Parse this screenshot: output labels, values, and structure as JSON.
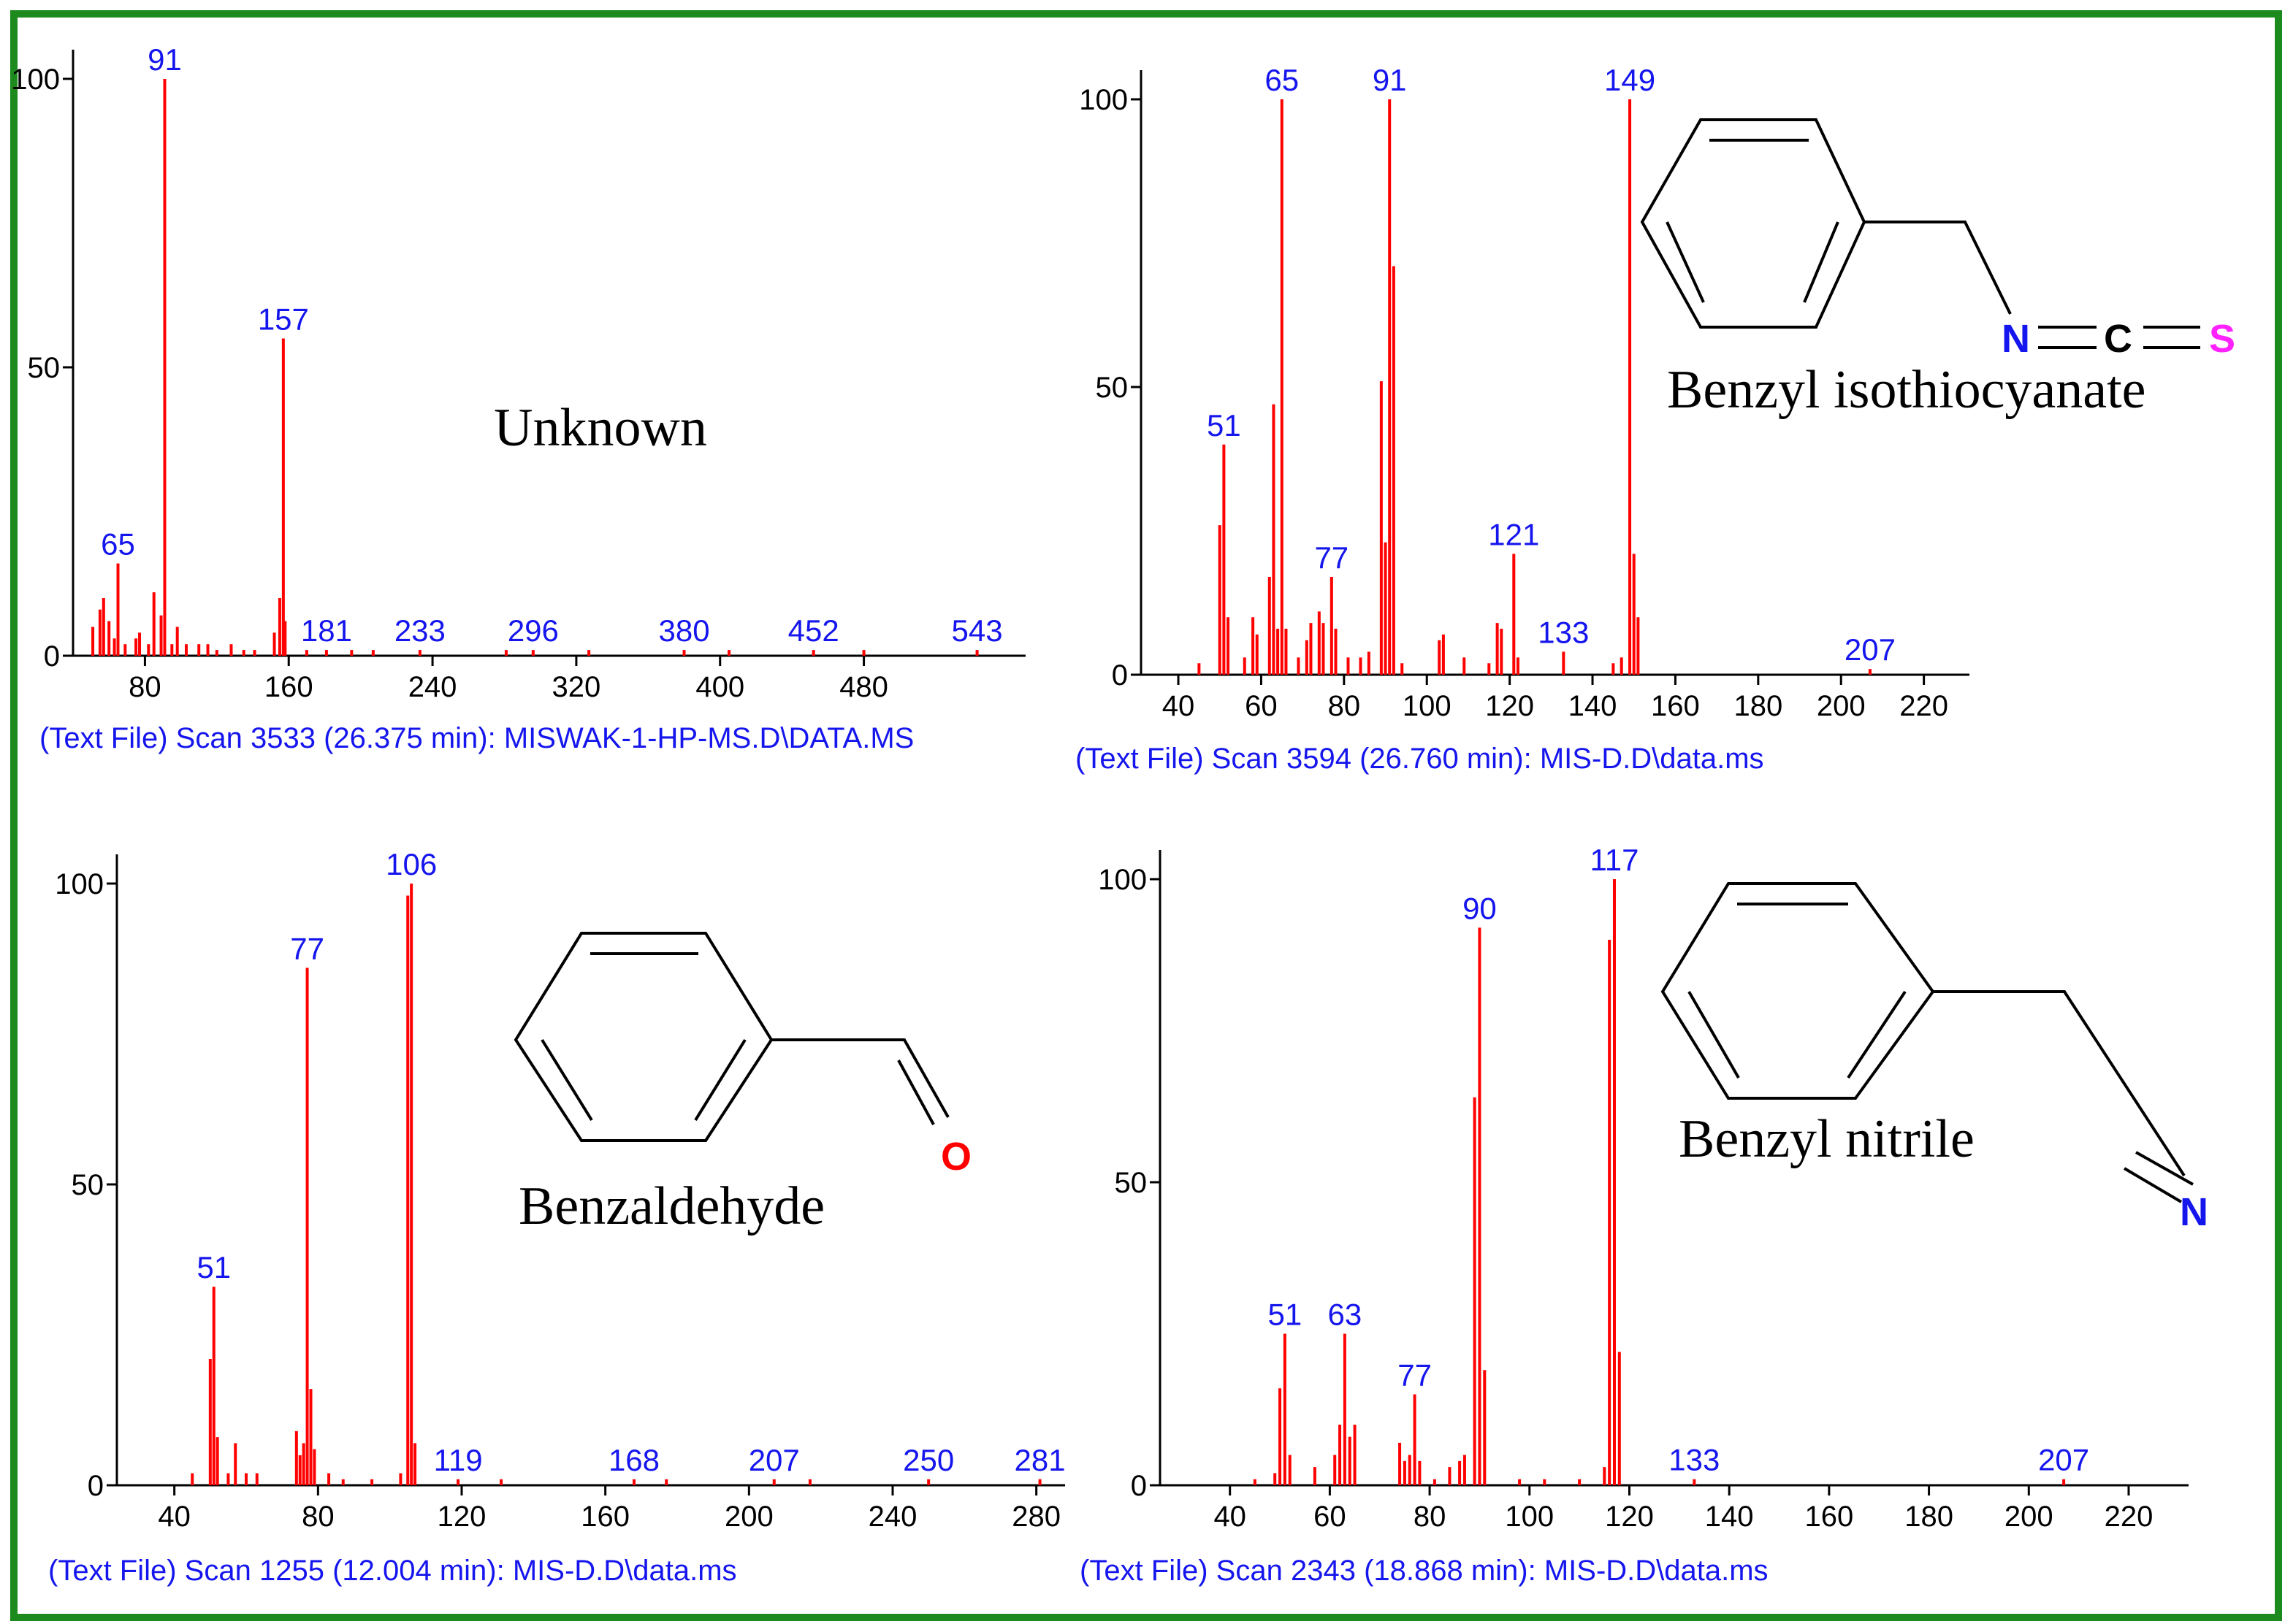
{
  "colors": {
    "frame": "#1c8a1c",
    "peaks": "#ff0000",
    "labels": "#1515ee"
  },
  "chart_data": [
    {
      "type": "bar",
      "compound_name": "Unknown",
      "caption": "(Text File) Scan 3533 (26.375 min): MISWAK-1-HP-MS.D\\DATA.MS",
      "xlim": [
        40,
        570
      ],
      "ylim": [
        0,
        100
      ],
      "x_ticks": [
        80,
        160,
        240,
        320,
        400,
        480
      ],
      "y_ticks": [
        0,
        50,
        100
      ],
      "peaks": [
        {
          "x": 51,
          "y": 5
        },
        {
          "x": 55,
          "y": 8
        },
        {
          "x": 57,
          "y": 10
        },
        {
          "x": 60,
          "y": 6
        },
        {
          "x": 63,
          "y": 3
        },
        {
          "x": 65,
          "y": 16
        },
        {
          "x": 69,
          "y": 2
        },
        {
          "x": 75,
          "y": 3
        },
        {
          "x": 77,
          "y": 4
        },
        {
          "x": 82,
          "y": 2
        },
        {
          "x": 85,
          "y": 11
        },
        {
          "x": 89,
          "y": 7
        },
        {
          "x": 91,
          "y": 100
        },
        {
          "x": 95,
          "y": 2
        },
        {
          "x": 98,
          "y": 5
        },
        {
          "x": 103,
          "y": 2
        },
        {
          "x": 110,
          "y": 2
        },
        {
          "x": 115,
          "y": 2
        },
        {
          "x": 120,
          "y": 1
        },
        {
          "x": 128,
          "y": 2
        },
        {
          "x": 135,
          "y": 1
        },
        {
          "x": 141,
          "y": 1
        },
        {
          "x": 152,
          "y": 4
        },
        {
          "x": 155,
          "y": 10
        },
        {
          "x": 157,
          "y": 55
        },
        {
          "x": 158,
          "y": 6
        },
        {
          "x": 170,
          "y": 1
        },
        {
          "x": 181,
          "y": 1
        },
        {
          "x": 195,
          "y": 1
        },
        {
          "x": 207,
          "y": 1
        },
        {
          "x": 233,
          "y": 1
        },
        {
          "x": 281,
          "y": 1
        },
        {
          "x": 296,
          "y": 1
        },
        {
          "x": 327,
          "y": 1
        },
        {
          "x": 380,
          "y": 1
        },
        {
          "x": 405,
          "y": 1
        },
        {
          "x": 452,
          "y": 1
        },
        {
          "x": 480,
          "y": 1
        },
        {
          "x": 543,
          "y": 1
        }
      ],
      "labels": [
        {
          "x": 65,
          "y": 16,
          "text": "65"
        },
        {
          "x": 91,
          "y": 100,
          "text": "91"
        },
        {
          "x": 157,
          "y": 55,
          "text": "157"
        },
        {
          "x": 181,
          "y": 1,
          "text": "181"
        },
        {
          "x": 233,
          "y": 1,
          "text": "233"
        },
        {
          "x": 296,
          "y": 1,
          "text": "296"
        },
        {
          "x": 380,
          "y": 1,
          "text": "380"
        },
        {
          "x": 452,
          "y": 1,
          "text": "452"
        },
        {
          "x": 543,
          "y": 1,
          "text": "543"
        }
      ]
    },
    {
      "type": "bar",
      "compound_name": "Benzyl isothiocyanate",
      "caption": "(Text File) Scan 3594 (26.760 min): MIS-D.D\\data.ms",
      "xlim": [
        31,
        231
      ],
      "ylim": [
        0,
        100
      ],
      "x_ticks": [
        40,
        60,
        80,
        100,
        120,
        140,
        160,
        180,
        200,
        220
      ],
      "y_ticks": [
        0,
        50,
        100
      ],
      "peaks": [
        {
          "x": 45,
          "y": 2
        },
        {
          "x": 50,
          "y": 26
        },
        {
          "x": 51,
          "y": 40
        },
        {
          "x": 52,
          "y": 10
        },
        {
          "x": 56,
          "y": 3
        },
        {
          "x": 58,
          "y": 10
        },
        {
          "x": 59,
          "y": 7
        },
        {
          "x": 62,
          "y": 17
        },
        {
          "x": 63,
          "y": 47
        },
        {
          "x": 64,
          "y": 8
        },
        {
          "x": 65,
          "y": 100
        },
        {
          "x": 66,
          "y": 8
        },
        {
          "x": 69,
          "y": 3
        },
        {
          "x": 71,
          "y": 6
        },
        {
          "x": 72,
          "y": 9
        },
        {
          "x": 74,
          "y": 11
        },
        {
          "x": 75,
          "y": 9
        },
        {
          "x": 77,
          "y": 17
        },
        {
          "x": 78,
          "y": 8
        },
        {
          "x": 81,
          "y": 3
        },
        {
          "x": 84,
          "y": 3
        },
        {
          "x": 86,
          "y": 4
        },
        {
          "x": 89,
          "y": 51
        },
        {
          "x": 90,
          "y": 23
        },
        {
          "x": 91,
          "y": 100
        },
        {
          "x": 92,
          "y": 71
        },
        {
          "x": 94,
          "y": 2
        },
        {
          "x": 103,
          "y": 6
        },
        {
          "x": 104,
          "y": 7
        },
        {
          "x": 109,
          "y": 3
        },
        {
          "x": 115,
          "y": 2
        },
        {
          "x": 117,
          "y": 9
        },
        {
          "x": 118,
          "y": 8
        },
        {
          "x": 121,
          "y": 21
        },
        {
          "x": 122,
          "y": 3
        },
        {
          "x": 133,
          "y": 4
        },
        {
          "x": 145,
          "y": 2
        },
        {
          "x": 147,
          "y": 3
        },
        {
          "x": 149,
          "y": 100
        },
        {
          "x": 150,
          "y": 21
        },
        {
          "x": 151,
          "y": 10
        },
        {
          "x": 207,
          "y": 1
        }
      ],
      "labels": [
        {
          "x": 51,
          "y": 40,
          "text": "51"
        },
        {
          "x": 65,
          "y": 100,
          "text": "65"
        },
        {
          "x": 77,
          "y": 17,
          "text": "77"
        },
        {
          "x": 91,
          "y": 100,
          "text": "91"
        },
        {
          "x": 121,
          "y": 21,
          "text": "121"
        },
        {
          "x": 133,
          "y": 4,
          "text": "133"
        },
        {
          "x": 149,
          "y": 100,
          "text": "149"
        },
        {
          "x": 207,
          "y": 1,
          "text": "207"
        }
      ],
      "structure": {
        "atoms": [
          "N",
          "C",
          "S"
        ]
      }
    },
    {
      "type": "bar",
      "compound_name": "Benzaldehyde",
      "caption": "(Text File) Scan 1255 (12.004 min): MIS-D.D\\data.ms",
      "xlim": [
        24,
        288
      ],
      "ylim": [
        0,
        100
      ],
      "x_ticks": [
        40,
        80,
        120,
        160,
        200,
        240,
        280
      ],
      "y_ticks": [
        0,
        50,
        100
      ],
      "peaks": [
        {
          "x": 45,
          "y": 2
        },
        {
          "x": 50,
          "y": 21
        },
        {
          "x": 51,
          "y": 33
        },
        {
          "x": 52,
          "y": 8
        },
        {
          "x": 55,
          "y": 2
        },
        {
          "x": 57,
          "y": 7
        },
        {
          "x": 60,
          "y": 2
        },
        {
          "x": 63,
          "y": 2
        },
        {
          "x": 74,
          "y": 9
        },
        {
          "x": 75,
          "y": 5
        },
        {
          "x": 76,
          "y": 7
        },
        {
          "x": 77,
          "y": 86
        },
        {
          "x": 78,
          "y": 16
        },
        {
          "x": 79,
          "y": 6
        },
        {
          "x": 83,
          "y": 2
        },
        {
          "x": 87,
          "y": 1
        },
        {
          "x": 95,
          "y": 1
        },
        {
          "x": 103,
          "y": 2
        },
        {
          "x": 105,
          "y": 98
        },
        {
          "x": 106,
          "y": 100
        },
        {
          "x": 107,
          "y": 7
        },
        {
          "x": 119,
          "y": 1
        },
        {
          "x": 131,
          "y": 1
        },
        {
          "x": 168,
          "y": 1
        },
        {
          "x": 177,
          "y": 1
        },
        {
          "x": 207,
          "y": 1
        },
        {
          "x": 217,
          "y": 1
        },
        {
          "x": 250,
          "y": 1
        },
        {
          "x": 281,
          "y": 1
        }
      ],
      "labels": [
        {
          "x": 51,
          "y": 33,
          "text": "51"
        },
        {
          "x": 77,
          "y": 86,
          "text": "77"
        },
        {
          "x": 106,
          "y": 100,
          "text": "106"
        },
        {
          "x": 119,
          "y": 1,
          "text": "119"
        },
        {
          "x": 168,
          "y": 1,
          "text": "168"
        },
        {
          "x": 207,
          "y": 1,
          "text": "207"
        },
        {
          "x": 250,
          "y": 1,
          "text": "250"
        },
        {
          "x": 281,
          "y": 1,
          "text": "281"
        }
      ],
      "structure": {
        "atoms": [
          "O"
        ]
      }
    },
    {
      "type": "bar",
      "compound_name": "Benzyl nitrile",
      "caption": "(Text File) Scan 2343 (18.868 min): MIS-D.D\\data.ms",
      "xlim": [
        26,
        232
      ],
      "ylim": [
        0,
        100
      ],
      "x_ticks": [
        40,
        60,
        80,
        100,
        120,
        140,
        160,
        180,
        200,
        220
      ],
      "y_ticks": [
        0,
        50,
        100
      ],
      "peaks": [
        {
          "x": 45,
          "y": 1
        },
        {
          "x": 49,
          "y": 2
        },
        {
          "x": 50,
          "y": 16
        },
        {
          "x": 51,
          "y": 25
        },
        {
          "x": 52,
          "y": 5
        },
        {
          "x": 57,
          "y": 3
        },
        {
          "x": 61,
          "y": 5
        },
        {
          "x": 62,
          "y": 10
        },
        {
          "x": 63,
          "y": 25
        },
        {
          "x": 64,
          "y": 8
        },
        {
          "x": 65,
          "y": 10
        },
        {
          "x": 74,
          "y": 7
        },
        {
          "x": 75,
          "y": 4
        },
        {
          "x": 76,
          "y": 5
        },
        {
          "x": 77,
          "y": 15
        },
        {
          "x": 78,
          "y": 4
        },
        {
          "x": 81,
          "y": 1
        },
        {
          "x": 84,
          "y": 3
        },
        {
          "x": 86,
          "y": 4
        },
        {
          "x": 87,
          "y": 5
        },
        {
          "x": 89,
          "y": 64
        },
        {
          "x": 90,
          "y": 92
        },
        {
          "x": 91,
          "y": 19
        },
        {
          "x": 98,
          "y": 1
        },
        {
          "x": 103,
          "y": 1
        },
        {
          "x": 110,
          "y": 1
        },
        {
          "x": 115,
          "y": 3
        },
        {
          "x": 116,
          "y": 90
        },
        {
          "x": 117,
          "y": 100
        },
        {
          "x": 118,
          "y": 22
        },
        {
          "x": 133,
          "y": 1
        },
        {
          "x": 207,
          "y": 1
        }
      ],
      "labels": [
        {
          "x": 51,
          "y": 25,
          "text": "51"
        },
        {
          "x": 63,
          "y": 25,
          "text": "63"
        },
        {
          "x": 77,
          "y": 15,
          "text": "77"
        },
        {
          "x": 90,
          "y": 92,
          "text": "90"
        },
        {
          "x": 117,
          "y": 100,
          "text": "117"
        },
        {
          "x": 133,
          "y": 1,
          "text": "133"
        },
        {
          "x": 207,
          "y": 1,
          "text": "207"
        }
      ],
      "structure": {
        "atoms": [
          "N"
        ]
      }
    }
  ]
}
